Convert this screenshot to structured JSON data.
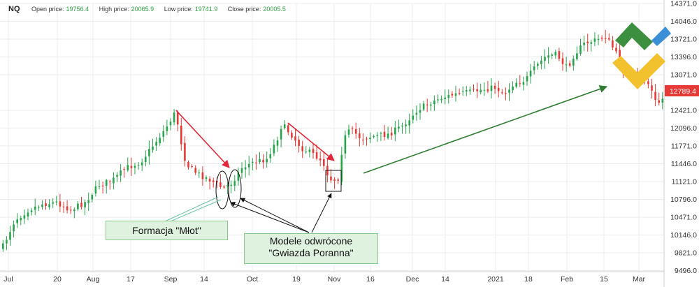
{
  "header": {
    "symbol": "NQ",
    "open_label": "Open price:",
    "open_value": "19756.4",
    "high_label": "High price:",
    "high_value": "20065.9",
    "low_label": "Low price:",
    "low_value": "19741.9",
    "close_label": "Close price:",
    "close_value": "20005.5"
  },
  "annotations": {
    "hammer": "Formacja \"Młot\"",
    "star_line1": "Modele odwrócone",
    "star_line2": "\"Gwiazda Poranna\""
  },
  "chart_data": {
    "type": "candlestick",
    "y_ticks": [
      "14371.0",
      "14046.0",
      "13721.0",
      "13396.0",
      "13071.0",
      "12421.0",
      "12096.0",
      "11771.0",
      "11446.0",
      "11121.0",
      "10796.0",
      "10471.0",
      "10146.0",
      "9821.0",
      "9496.0"
    ],
    "x_ticks": [
      "Jul",
      "20",
      "Aug",
      "17",
      "Sep",
      "14",
      "Oct",
      "19",
      "Nov",
      "16",
      "Dec",
      "14",
      "2021",
      "18",
      "Feb",
      "15",
      "Mar"
    ],
    "last_price": "12789.4",
    "colors": {
      "up": "#26a34b",
      "down": "#e53935",
      "grid": "#ececec",
      "last_price_bg": "#e53935",
      "red_arrow": "#e0283a",
      "green_arrow": "#2e7d32"
    },
    "grid": true
  }
}
